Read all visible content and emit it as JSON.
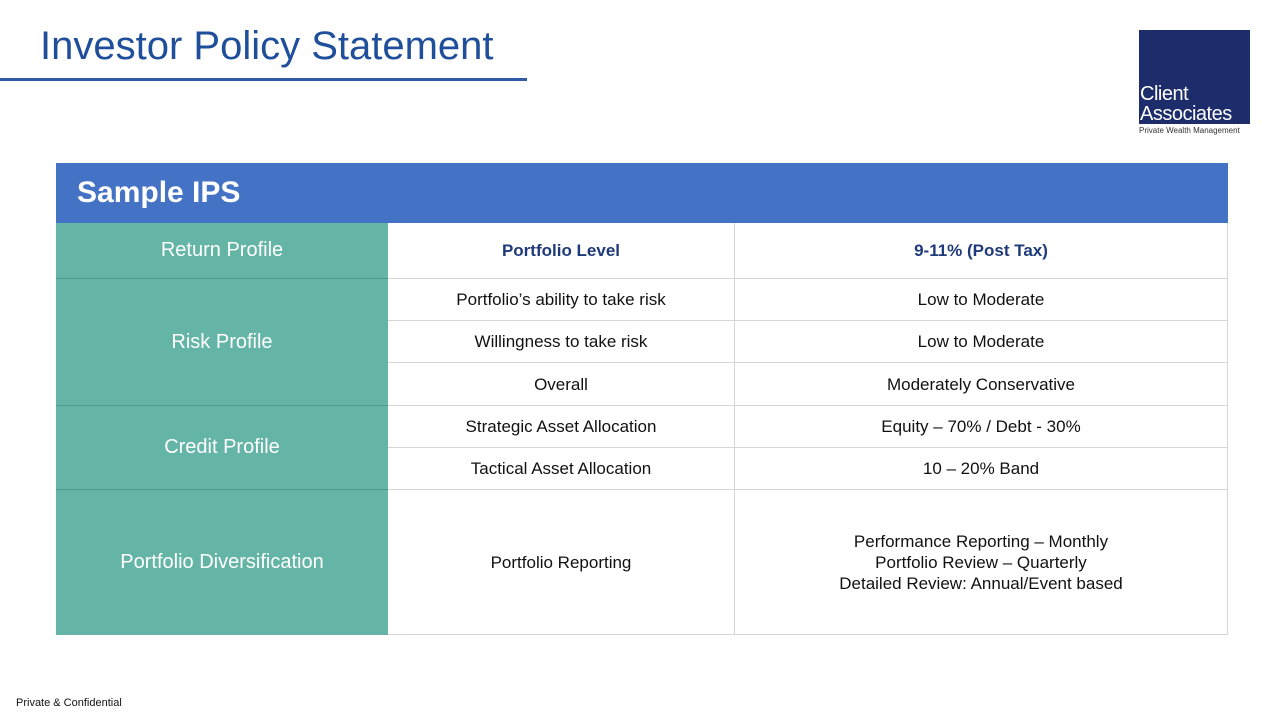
{
  "title": "Investor Policy Statement",
  "logo": {
    "line1": "Client",
    "line2": "Associates",
    "tagline": "Private Wealth Management"
  },
  "table": {
    "heading": "Sample IPS",
    "groups": [
      "Return Profile",
      "Risk Profile",
      "Credit Profile",
      "Portfolio Diversification"
    ],
    "rows": [
      {
        "item": "Portfolio Level",
        "value": "9-11% (Post Tax)"
      },
      {
        "item": "Portfolio’s ability to take risk",
        "value": "Low to Moderate"
      },
      {
        "item": "Willingness to take risk",
        "value": "Low to Moderate"
      },
      {
        "item": "Overall",
        "value": "Moderately Conservative"
      },
      {
        "item": "Strategic Asset Allocation",
        "value": "Equity – 70% / Debt - 30%"
      },
      {
        "item": "Tactical Asset Allocation",
        "value": "10 – 20% Band"
      },
      {
        "item": "Portfolio Reporting",
        "value_lines": [
          "Performance Reporting – Monthly",
          "Portfolio Review – Quarterly",
          "Detailed Review: Annual/Event based"
        ]
      }
    ]
  },
  "footer": "Private & Confidential"
}
